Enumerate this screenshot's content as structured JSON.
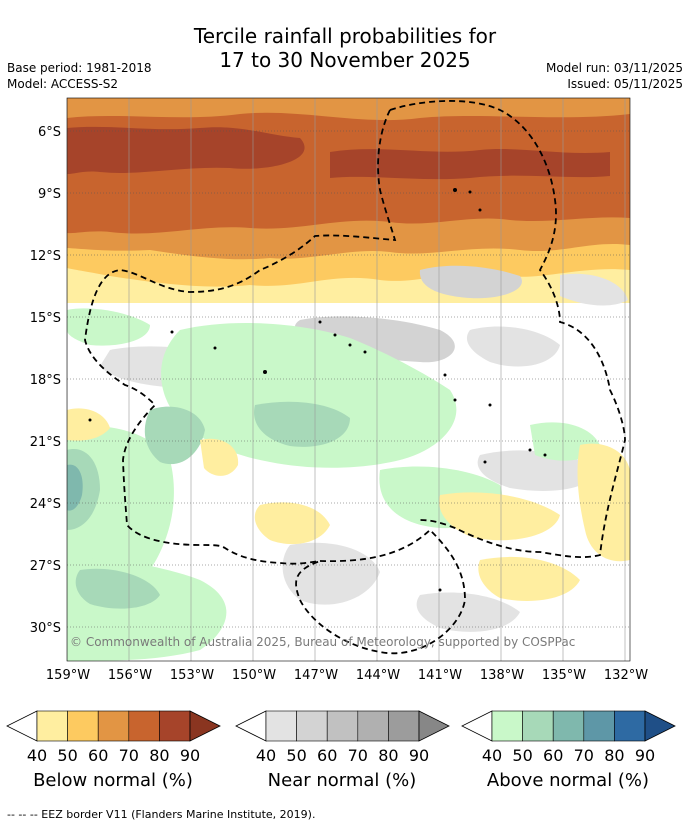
{
  "title": {
    "line1": "Tercile rainfall probabilities for",
    "line2": "17 to 30 November 2025"
  },
  "meta": {
    "base_period": "Base period: 1981-2018",
    "model": "Model: ACCESS-S2",
    "model_run": "Model run: 03/11/2025",
    "issued": "Issued: 05/11/2025"
  },
  "map": {
    "lat_ticks": [
      "6°S",
      "9°S",
      "12°S",
      "15°S",
      "18°S",
      "21°S",
      "24°S",
      "27°S",
      "30°S"
    ],
    "lon_ticks": [
      "159°W",
      "156°W",
      "153°W",
      "150°W",
      "147°W",
      "144°W",
      "141°W",
      "138°W",
      "135°W",
      "132°W"
    ],
    "copyright": "© Commonwealth of Australia 2025, Bureau of Meteorology, supported by COSPPac"
  },
  "legend": {
    "below": {
      "label": "Below normal (%)",
      "ticks": [
        "40",
        "50",
        "60",
        "70",
        "80",
        "90"
      ],
      "colors": [
        "#ffeea0",
        "#fdca60",
        "#e29544",
        "#c8642e",
        "#a6442a",
        "#8a3520"
      ]
    },
    "near": {
      "label": "Near normal (%)",
      "ticks": [
        "40",
        "50",
        "60",
        "70",
        "80",
        "90"
      ],
      "colors": [
        "#e3e3e3",
        "#d3d3d3",
        "#c1c1c1",
        "#b0b0b0",
        "#9c9c9c",
        "#878787"
      ]
    },
    "above": {
      "label": "Above normal (%)",
      "ticks": [
        "40",
        "50",
        "60",
        "70",
        "80",
        "90"
      ],
      "colors": [
        "#c9f8c9",
        "#a7d9b8",
        "#7fb8ad",
        "#5e97a7",
        "#2e6aa3",
        "#1f4f87"
      ]
    }
  },
  "footnote": "-- -- -- EEZ border V11 (Flanders Marine Institute, 2019)."
}
